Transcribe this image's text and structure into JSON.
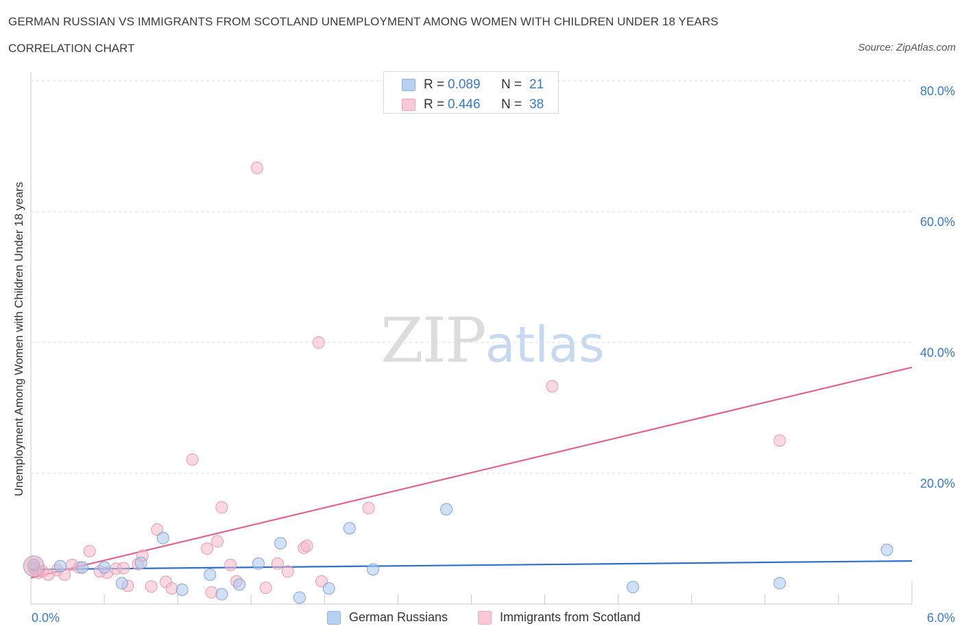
{
  "header": {
    "title": "GERMAN RUSSIAN VS IMMIGRANTS FROM SCOTLAND UNEMPLOYMENT AMONG WOMEN WITH CHILDREN UNDER 18 YEARS",
    "subtitle": "CORRELATION CHART",
    "source": "Source: ZipAtlas.com"
  },
  "watermark": {
    "left": "ZIP",
    "right": "atlas"
  },
  "stats_box": {
    "rows": [
      {
        "r_label": "R = ",
        "r_value": "0.089",
        "n_label": "N = ",
        "n_value": "21",
        "color": "#b8d1f3",
        "border": "#8fb0e0"
      },
      {
        "r_label": "R = ",
        "r_value": "0.446",
        "n_label": "N = ",
        "n_value": "38",
        "color": "#f8c9d6",
        "border": "#eba6ba"
      }
    ]
  },
  "legend": {
    "items": [
      {
        "label": "German Russians",
        "color": "#b8d1f3",
        "border": "#8fb0e0"
      },
      {
        "label": "Immigrants from Scotland",
        "color": "#f8c9d6",
        "border": "#eba6ba"
      }
    ]
  },
  "colors": {
    "blue_point": "#a9c6ee",
    "blue_line": "#2f6fc9",
    "pink_point": "#f5b8c9",
    "pink_line": "#e0648f",
    "tick_label": "#3a78c9",
    "grid": "#dddddd"
  },
  "chart_data": {
    "type": "scatter",
    "title": "GERMAN RUSSIAN VS IMMIGRANTS FROM SCOTLAND UNEMPLOYMENT AMONG WOMEN WITH CHILDREN UNDER 18 YEARS",
    "xlabel": "",
    "ylabel": "Unemployment Among Women with Children Under 18 years",
    "xlim": [
      0,
      6
    ],
    "ylim": [
      0,
      80
    ],
    "x_tick_labels": [
      "0.0%",
      "6.0%"
    ],
    "y_tick_labels": [
      "20.0%",
      "40.0%",
      "60.0%",
      "80.0%"
    ],
    "y_ticks": [
      20,
      40,
      60,
      80
    ],
    "grid": true,
    "legend_position": "bottom",
    "series": [
      {
        "name": "German Russians",
        "r": 0.089,
        "n": 21,
        "trend": [
          [
            0,
            5.3
          ],
          [
            6,
            6.6
          ]
        ],
        "points": [
          [
            0.02,
            6.0
          ],
          [
            0.2,
            5.8
          ],
          [
            0.35,
            5.6
          ],
          [
            0.5,
            5.6
          ],
          [
            0.62,
            3.2
          ],
          [
            0.75,
            6.3
          ],
          [
            0.9,
            10.1
          ],
          [
            1.03,
            2.2
          ],
          [
            1.22,
            4.5
          ],
          [
            1.3,
            1.5
          ],
          [
            1.42,
            3.0
          ],
          [
            1.55,
            6.2
          ],
          [
            1.7,
            9.3
          ],
          [
            1.83,
            1.0
          ],
          [
            2.03,
            2.4
          ],
          [
            2.17,
            11.6
          ],
          [
            2.33,
            5.3
          ],
          [
            2.83,
            14.5
          ],
          [
            4.1,
            2.6
          ],
          [
            5.1,
            3.2
          ],
          [
            5.83,
            8.3
          ]
        ]
      },
      {
        "name": "Immigrants from Scotland",
        "r": 0.446,
        "n": 38,
        "trend": [
          [
            0,
            4.0
          ],
          [
            6,
            36.2
          ]
        ],
        "points": [
          [
            0.02,
            5.5
          ],
          [
            0.05,
            4.8
          ],
          [
            0.08,
            5.0
          ],
          [
            0.12,
            4.5
          ],
          [
            0.18,
            5.2
          ],
          [
            0.23,
            4.5
          ],
          [
            0.28,
            6.0
          ],
          [
            0.33,
            5.6
          ],
          [
            0.4,
            8.1
          ],
          [
            0.47,
            5.0
          ],
          [
            0.52,
            4.8
          ],
          [
            0.58,
            5.4
          ],
          [
            0.63,
            5.5
          ],
          [
            0.66,
            2.8
          ],
          [
            0.73,
            6.1
          ],
          [
            0.76,
            7.4
          ],
          [
            0.82,
            2.7
          ],
          [
            0.86,
            11.4
          ],
          [
            0.92,
            3.4
          ],
          [
            0.96,
            2.4
          ],
          [
            1.1,
            22.1
          ],
          [
            1.2,
            8.5
          ],
          [
            1.23,
            1.8
          ],
          [
            1.27,
            9.6
          ],
          [
            1.3,
            14.8
          ],
          [
            1.36,
            6.0
          ],
          [
            1.4,
            3.5
          ],
          [
            1.54,
            66.7
          ],
          [
            1.6,
            2.5
          ],
          [
            1.68,
            6.2
          ],
          [
            1.75,
            5.0
          ],
          [
            1.86,
            8.6
          ],
          [
            1.88,
            8.9
          ],
          [
            1.96,
            40.0
          ],
          [
            1.98,
            3.5
          ],
          [
            2.3,
            14.7
          ],
          [
            3.55,
            33.3
          ],
          [
            5.1,
            25.0
          ]
        ]
      }
    ]
  }
}
